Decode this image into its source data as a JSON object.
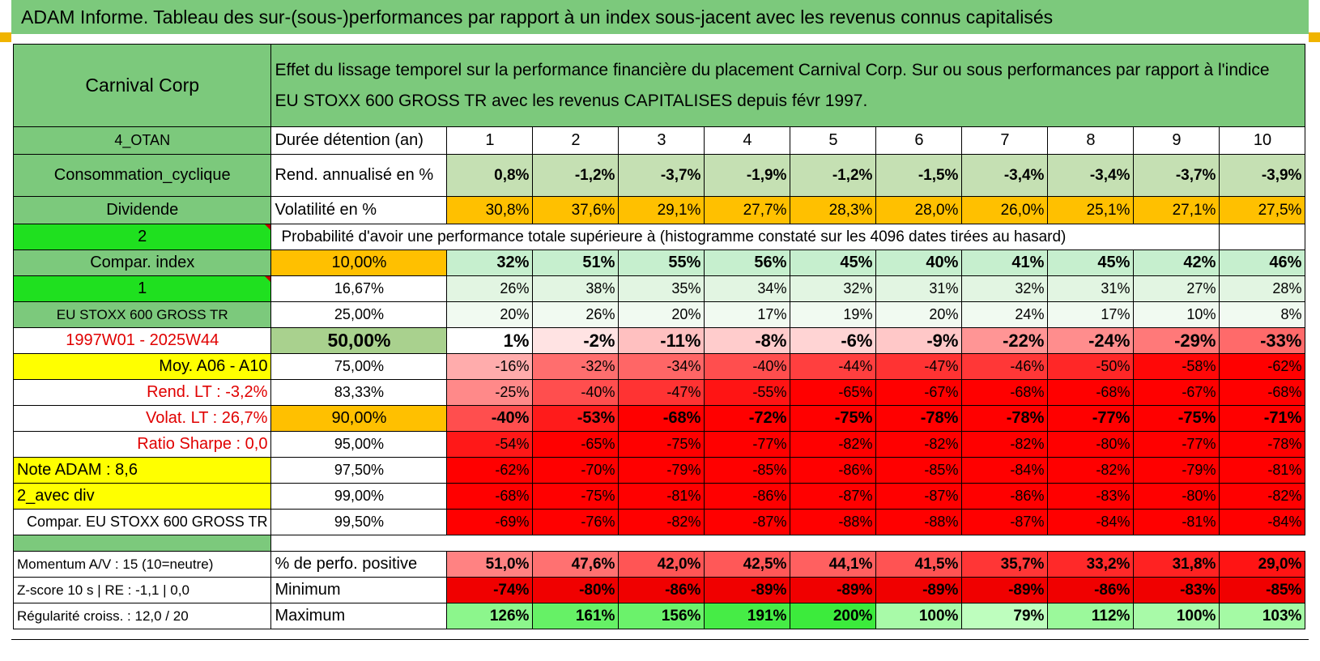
{
  "title": "ADAM Informe. Tableau des sur-(sous-)performances par rapport à un index sous-jacent avec les revenus connus capitalisés",
  "header": {
    "company": "Carnival Corp",
    "description_line1": "Effet du lissage temporel sur la performance financière du placement Carnival Corp. Sur ou sous performances par rapport à l'indice",
    "description_line2": "EU STOXX 600 GROSS TR avec les revenus CAPITALISES depuis févr 1997."
  },
  "left": {
    "group": "4_OTAN",
    "sector": "Consommation_cyclique",
    "dividend_label": "Dividende",
    "selector_2": "2",
    "compar_index": "Compar. index",
    "selector_1": "1",
    "index_name": "EU STOXX 600 GROSS TR",
    "period": "1997W01 - 2025W44",
    "moy": "Moy. A06 - A10",
    "rend_lt": "Rend. LT :   -3,2%",
    "volat_lt": "Volat. LT :   26,7%",
    "sharpe": "Ratio Sharpe :    0,0",
    "note": "Note ADAM : 8,6",
    "avec_div": "2_avec div",
    "compar_full": "Compar. EU STOXX 600 GROSS TR",
    "momentum": "Momentum A/V : 15 (10=neutre)",
    "zscore": "Z-score 10 s | RE : -1,1 | 0,0",
    "regularite": "Régularité croiss. : 12,0 / 20"
  },
  "labels": {
    "duree": "Durée détention (an)",
    "rend": "Rend. annualisé en %",
    "volat": "Volatilité en %",
    "proba": "Probabilité d'avoir une performance totale supérieure à (histogramme constaté sur les 4096 dates tirées au hasard)",
    "pct_pos": "% de perfo. positive",
    "minimum": "Minimum",
    "maximum": "Maximum"
  },
  "years": [
    "1",
    "2",
    "3",
    "4",
    "5",
    "6",
    "7",
    "8",
    "9",
    "10"
  ],
  "rend": [
    "0,8%",
    "-1,2%",
    "-3,7%",
    "-1,9%",
    "-1,2%",
    "-1,5%",
    "-3,4%",
    "-3,4%",
    "-3,7%",
    "-3,9%"
  ],
  "volat": [
    "30,8%",
    "37,6%",
    "29,1%",
    "27,7%",
    "28,3%",
    "28,0%",
    "26,0%",
    "25,1%",
    "27,1%",
    "27,5%"
  ],
  "quantiles": [
    {
      "q": "10,00%",
      "vals": [
        "32%",
        "51%",
        "55%",
        "56%",
        "45%",
        "40%",
        "41%",
        "45%",
        "42%",
        "46%"
      ]
    },
    {
      "q": "16,67%",
      "vals": [
        "26%",
        "38%",
        "35%",
        "34%",
        "32%",
        "31%",
        "32%",
        "31%",
        "27%",
        "28%"
      ]
    },
    {
      "q": "25,00%",
      "vals": [
        "20%",
        "26%",
        "20%",
        "17%",
        "19%",
        "20%",
        "24%",
        "17%",
        "10%",
        "8%"
      ]
    },
    {
      "q": "50,00%",
      "vals": [
        "1%",
        "-2%",
        "-11%",
        "-8%",
        "-6%",
        "-9%",
        "-22%",
        "-24%",
        "-29%",
        "-33%"
      ]
    },
    {
      "q": "75,00%",
      "vals": [
        "-16%",
        "-32%",
        "-34%",
        "-40%",
        "-44%",
        "-47%",
        "-46%",
        "-50%",
        "-58%",
        "-62%"
      ]
    },
    {
      "q": "83,33%",
      "vals": [
        "-25%",
        "-40%",
        "-47%",
        "-55%",
        "-65%",
        "-67%",
        "-68%",
        "-68%",
        "-67%",
        "-68%"
      ]
    },
    {
      "q": "90,00%",
      "vals": [
        "-40%",
        "-53%",
        "-68%",
        "-72%",
        "-75%",
        "-78%",
        "-78%",
        "-77%",
        "-75%",
        "-71%"
      ]
    },
    {
      "q": "95,00%",
      "vals": [
        "-54%",
        "-65%",
        "-75%",
        "-77%",
        "-82%",
        "-82%",
        "-82%",
        "-80%",
        "-77%",
        "-78%"
      ]
    },
    {
      "q": "97,50%",
      "vals": [
        "-62%",
        "-70%",
        "-79%",
        "-85%",
        "-86%",
        "-85%",
        "-84%",
        "-82%",
        "-79%",
        "-81%"
      ]
    },
    {
      "q": "99,00%",
      "vals": [
        "-68%",
        "-75%",
        "-81%",
        "-86%",
        "-87%",
        "-87%",
        "-86%",
        "-83%",
        "-80%",
        "-82%"
      ]
    },
    {
      "q": "99,50%",
      "vals": [
        "-69%",
        "-76%",
        "-82%",
        "-87%",
        "-88%",
        "-88%",
        "-87%",
        "-84%",
        "-81%",
        "-84%"
      ]
    }
  ],
  "pct_pos": [
    "51,0%",
    "47,6%",
    "42,0%",
    "42,5%",
    "44,1%",
    "41,5%",
    "35,7%",
    "33,2%",
    "31,8%",
    "29,0%"
  ],
  "minimum": [
    "-74%",
    "-80%",
    "-86%",
    "-89%",
    "-89%",
    "-89%",
    "-89%",
    "-86%",
    "-83%",
    "-85%"
  ],
  "maximum": [
    "126%",
    "161%",
    "156%",
    "191%",
    "200%",
    "100%",
    "79%",
    "112%",
    "100%",
    "103%"
  ],
  "colors": {
    "green_header": "#7cc97c",
    "bright_green": "#1fe01f",
    "orange": "#ffc000",
    "yellow": "#ffff00",
    "red_text": "#e00000"
  }
}
